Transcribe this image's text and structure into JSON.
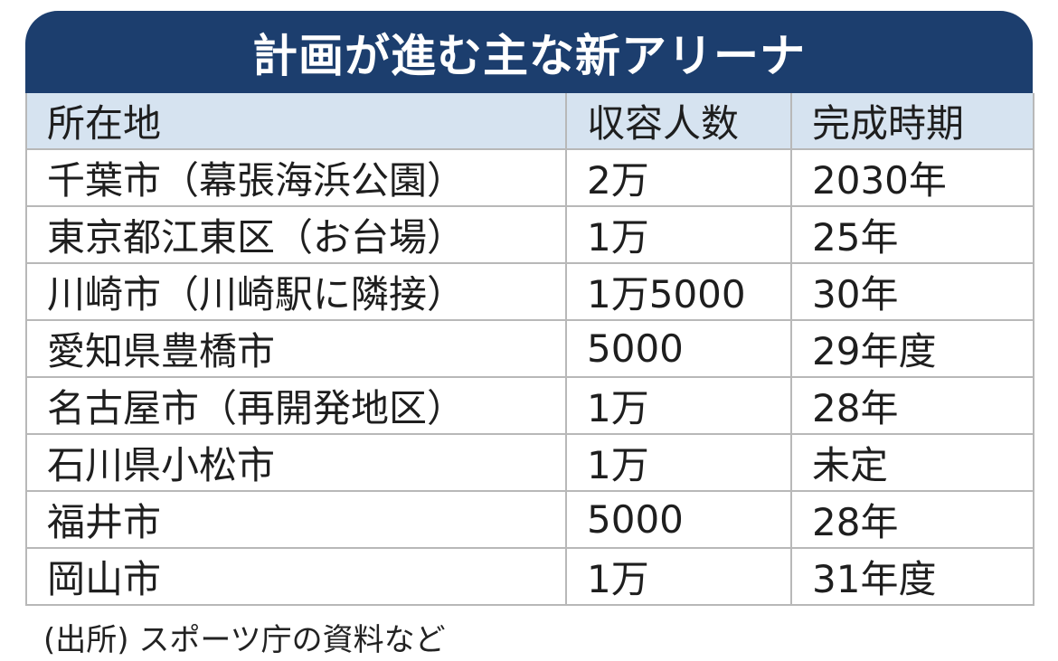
{
  "title": "計画が進む主な新アリーナ",
  "table": {
    "headers": [
      "所在地",
      "収容人数",
      "完成時期"
    ],
    "rows": [
      [
        "千葉市（幕張海浜公園）",
        "2万",
        "2030年"
      ],
      [
        "東京都江東区（お台場）",
        "1万",
        "25年"
      ],
      [
        "川崎市（川崎駅に隣接）",
        "1万5000",
        "30年"
      ],
      [
        "愛知県豊橋市",
        "5000",
        "29年度"
      ],
      [
        "名古屋市（再開発地区）",
        "1万",
        "28年"
      ],
      [
        "石川県小松市",
        "1万",
        "未定"
      ],
      [
        "福井市",
        "5000",
        "28年"
      ],
      [
        "岡山市",
        "1万",
        "31年度"
      ]
    ]
  },
  "source_note": "(出所) スポーツ庁の資料など",
  "colors": {
    "banner": "#1c3e6e",
    "header_fill": "#d6e3f0",
    "grid": "#b8b8b8"
  }
}
